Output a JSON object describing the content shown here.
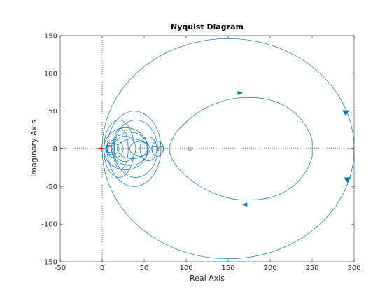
{
  "chart_data": {
    "type": "line",
    "title": "Nyquist Diagram",
    "xlabel": "Real Axis",
    "ylabel": "Imaginary Axis",
    "xlim": [
      -50,
      300
    ],
    "ylim": [
      -150,
      150
    ],
    "xticks": [
      -50,
      0,
      50,
      100,
      150,
      200,
      250,
      300
    ],
    "yticks": [
      -150,
      -100,
      -50,
      0,
      50,
      100,
      150
    ],
    "grid": false,
    "zero_lines": "dotted",
    "critical_point": {
      "x": -1,
      "y": 0,
      "marker": "+",
      "color": "#ff0000"
    },
    "series_color": "#0072bd",
    "series": [
      {
        "contours": [
          {
            "kind": "circle",
            "cx": 150,
            "cy": 0,
            "rx": 150,
            "ry": 146
          },
          {
            "kind": "loop",
            "points": [
              [
                88,
                22
              ],
              [
                110,
                45
              ],
              [
                140,
                62
              ],
              [
                170,
                68
              ],
              [
                205,
                63
              ],
              [
                232,
                45
              ],
              [
                248,
                18
              ],
              [
                250,
                0
              ],
              [
                248,
                -18
              ],
              [
                232,
                -45
              ],
              [
                205,
                -63
              ],
              [
                170,
                -68
              ],
              [
                140,
                -62
              ],
              [
                110,
                -45
              ],
              [
                88,
                -22
              ],
              [
                80,
                0
              ],
              [
                88,
                22
              ]
            ]
          },
          {
            "kind": "ellipse",
            "cx": 28,
            "cy": 0,
            "rx": 26,
            "ry": 28
          },
          {
            "kind": "ellipse",
            "cx": 38,
            "cy": 0,
            "rx": 32,
            "ry": 50
          },
          {
            "kind": "ellipse",
            "cx": 40,
            "cy": 0,
            "rx": 26,
            "ry": 38
          },
          {
            "kind": "ellipse",
            "cx": 33,
            "cy": 0,
            "rx": 22,
            "ry": 22
          },
          {
            "kind": "ellipse",
            "cx": 36,
            "cy": 0,
            "rx": 18,
            "ry": 13
          },
          {
            "kind": "ellipse",
            "cx": 45,
            "cy": 0,
            "rx": 12,
            "ry": 10
          },
          {
            "kind": "ellipse",
            "cx": 55,
            "cy": 0,
            "rx": 10,
            "ry": 16
          },
          {
            "kind": "ellipse",
            "cx": 66,
            "cy": 0,
            "rx": 7,
            "ry": 10
          },
          {
            "kind": "ellipse",
            "cx": 20,
            "cy": 0,
            "rx": 18,
            "ry": 38
          },
          {
            "kind": "ellipse",
            "cx": 27,
            "cy": 0,
            "rx": 13,
            "ry": 17
          },
          {
            "kind": "ellipse",
            "cx": 15,
            "cy": 0,
            "rx": 10,
            "ry": 12
          },
          {
            "kind": "ellipse",
            "cx": 12,
            "cy": 0,
            "rx": 8,
            "ry": 8
          },
          {
            "kind": "ellipse",
            "cx": 10,
            "cy": 0,
            "rx": 5,
            "ry": 5
          },
          {
            "kind": "ellipse",
            "cx": 9,
            "cy": 0,
            "rx": 3,
            "ry": 3
          },
          {
            "kind": "ellipse",
            "cx": 22,
            "cy": 0,
            "rx": 9,
            "ry": 27
          },
          {
            "kind": "ellipse",
            "cx": 63,
            "cy": 0,
            "rx": 4,
            "ry": 3
          },
          {
            "kind": "ellipse",
            "cx": 70,
            "cy": 0,
            "rx": 4,
            "ry": 3
          },
          {
            "kind": "rect",
            "x": 103,
            "y": -1.5,
            "w": 4,
            "h": 3
          }
        ],
        "arrows": [
          {
            "x": 290,
            "y": 48,
            "dir": "down"
          },
          {
            "x": 292,
            "y": -41,
            "dir": "down"
          },
          {
            "x": 164,
            "y": 74,
            "dir": "right"
          },
          {
            "x": 170,
            "y": -74,
            "dir": "left"
          }
        ]
      }
    ]
  }
}
